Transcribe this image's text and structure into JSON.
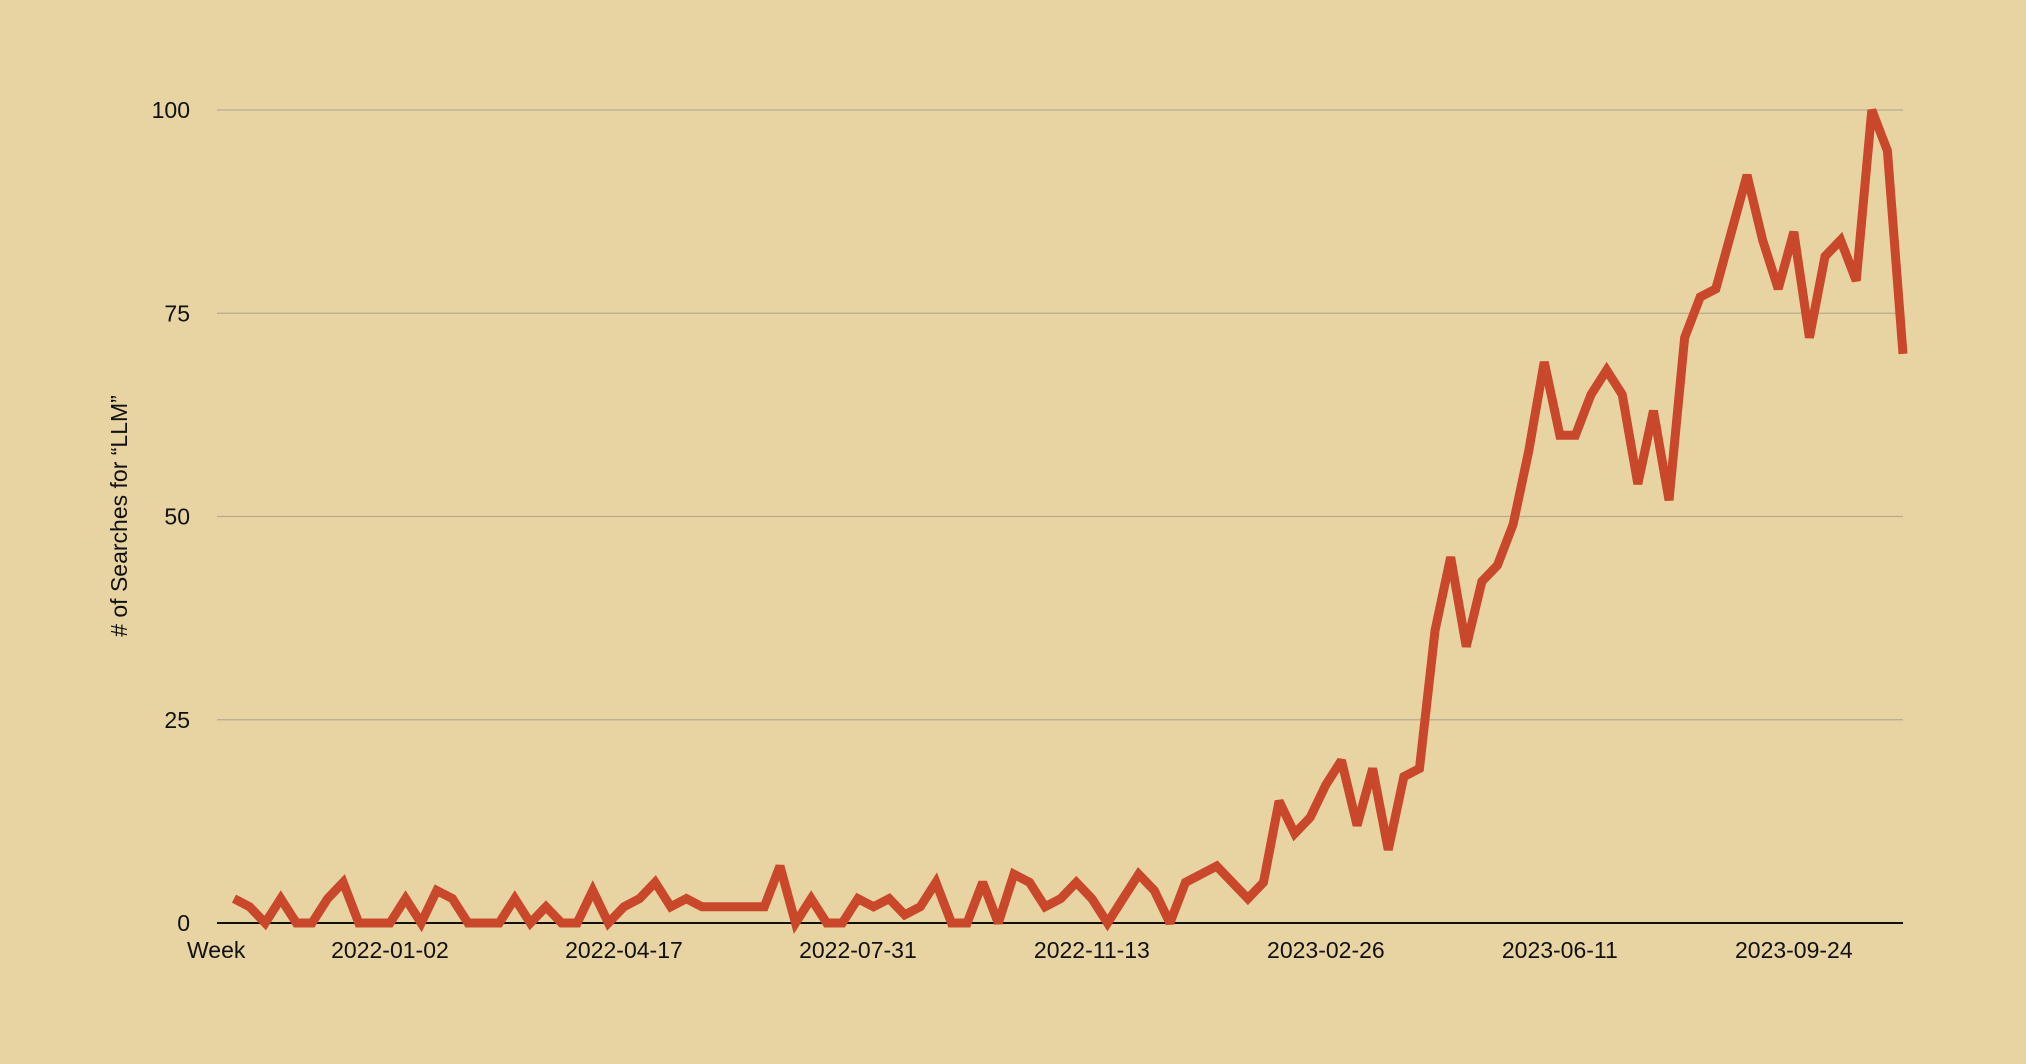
{
  "chart_data": {
    "type": "line",
    "ylabel": "# of Searches for “LLM”",
    "xlabel": "Week",
    "ylim": [
      0,
      100
    ],
    "y_ticks": [
      0,
      25,
      50,
      75,
      100
    ],
    "x_tick_labels": [
      "2022-01-02",
      "2022-04-17",
      "2022-07-31",
      "2022-11-13",
      "2023-02-26",
      "2023-06-11",
      "2023-09-24"
    ],
    "x_tick_indices": [
      10,
      25,
      40,
      55,
      70,
      85,
      100
    ],
    "grid": "horizontal",
    "legend": "none",
    "series": [
      {
        "color": "#c9472a",
        "values": [
          3,
          2,
          0,
          3,
          0,
          0,
          3,
          5,
          0,
          0,
          0,
          3,
          0,
          4,
          3,
          0,
          0,
          0,
          3,
          0,
          2,
          0,
          0,
          4,
          0,
          2,
          3,
          5,
          2,
          3,
          2,
          2,
          2,
          2,
          2,
          7,
          0,
          3,
          0,
          0,
          3,
          2,
          3,
          1,
          2,
          5,
          0,
          0,
          5,
          0,
          6,
          5,
          2,
          3,
          5,
          3,
          0,
          3,
          6,
          4,
          0,
          5,
          6,
          7,
          5,
          3,
          5,
          15,
          11,
          13,
          17,
          20,
          12,
          19,
          9,
          18,
          19,
          36,
          45,
          34,
          42,
          44,
          49,
          58,
          69,
          60,
          60,
          65,
          68,
          65,
          54,
          63,
          52,
          72,
          77,
          78,
          85,
          92,
          84,
          78,
          85,
          72,
          82,
          84,
          79,
          100,
          95,
          70
        ]
      }
    ]
  }
}
